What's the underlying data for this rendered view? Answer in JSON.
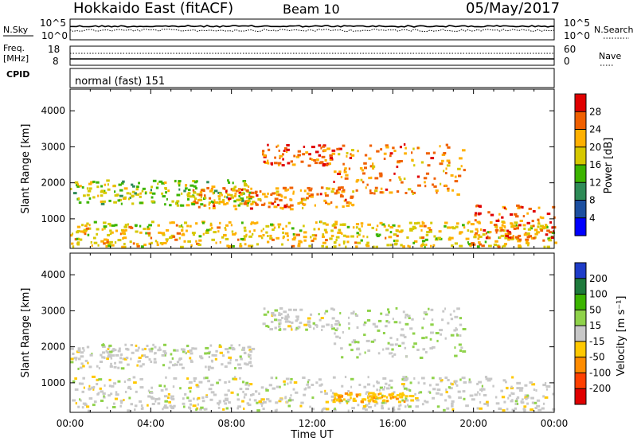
{
  "header": {
    "title": "Hokkaido East (fitACF)",
    "beam": "Beam 10",
    "date": "05/May/2017"
  },
  "panels": {
    "nsky": {
      "label": "N.Sky",
      "left_ticks": [
        "10^5",
        "10^0"
      ],
      "right_ticks": [
        "10^5",
        "10^0"
      ],
      "right_label": "N.Search"
    },
    "freq": {
      "label_top": "Freq.",
      "label_bottom": "[MHz]",
      "left_ticks": [
        "18",
        "8"
      ],
      "right_ticks": [
        "60",
        "0"
      ],
      "right_label": "Nave"
    },
    "cpid": {
      "label": "CPID",
      "text": "normal (fast) 151"
    }
  },
  "colorbars": {
    "power": {
      "label": "Power [dB]",
      "ticks": [
        "28",
        "24",
        "20",
        "16",
        "12",
        "8",
        "4"
      ],
      "colors": [
        "#e00000",
        "#f06000",
        "#ffb000",
        "#d6c800",
        "#3cb400",
        "#2e8b57",
        "#1c4fa0",
        "#0000ff"
      ]
    },
    "velocity": {
      "label": "Velocity [m s⁻¹]",
      "ticks": [
        "200",
        "100",
        "50",
        "15",
        "-15",
        "-50",
        "-100",
        "-200"
      ],
      "colors": [
        "#1e3cc8",
        "#1e7a3c",
        "#3cb400",
        "#8fd24a",
        "#c8c8c8",
        "#ffc800",
        "#ff8c00",
        "#ff4000",
        "#e00000"
      ]
    }
  },
  "chart_data": [
    {
      "type": "heatmap",
      "title": "Power",
      "ylabel": "Slant Range [km]",
      "xlabel": "Time UT",
      "xlim": [
        "00:00",
        "24:00"
      ],
      "ylim": [
        180,
        4600
      ],
      "xticks": [
        "00:00",
        "04:00",
        "08:00",
        "12:00",
        "16:00",
        "20:00",
        "00:00"
      ],
      "yticks": [
        "4000",
        "3000",
        "2000",
        "1000"
      ],
      "colorbar": "power",
      "features": [
        {
          "name": "near-range bands",
          "t": [
            0,
            24
          ],
          "range_km": [
            250,
            950
          ],
          "level_db": 20
        },
        {
          "name": "morning layer",
          "t": [
            0,
            9
          ],
          "range_km": [
            1400,
            2100
          ],
          "level_db": 16
        },
        {
          "name": "mid-day layer",
          "t": [
            6,
            14
          ],
          "range_km": [
            1300,
            1900
          ],
          "level_db": 24
        },
        {
          "name": "far echo",
          "t": [
            9.5,
            13
          ],
          "range_km": [
            2500,
            3100
          ],
          "level_db": 26
        },
        {
          "name": "afternoon arc",
          "t": [
            13,
            19.5
          ],
          "range_km": [
            1700,
            3100
          ],
          "level_db": 24
        },
        {
          "name": "late evening patch",
          "t": [
            20,
            24
          ],
          "range_km": [
            400,
            1400
          ],
          "level_db": 26
        }
      ]
    },
    {
      "type": "heatmap",
      "title": "Velocity",
      "ylabel": "Slant Range [km]",
      "xlabel": "Time UT",
      "xlim": [
        "00:00",
        "24:00"
      ],
      "ylim": [
        180,
        4600
      ],
      "xticks": [
        "00:00",
        "04:00",
        "08:00",
        "12:00",
        "16:00",
        "20:00",
        "00:00"
      ],
      "yticks": [
        "4000",
        "3000",
        "2000",
        "1000"
      ],
      "colorbar": "velocity",
      "features": [
        {
          "name": "ground scatter bands",
          "t": [
            0,
            24
          ],
          "range_km": [
            250,
            1200
          ],
          "velocity_ms": 0
        },
        {
          "name": "morning layer",
          "t": [
            0,
            9
          ],
          "range_km": [
            1400,
            2100
          ],
          "velocity_ms": 0
        },
        {
          "name": "far echo",
          "t": [
            9.5,
            13
          ],
          "range_km": [
            2500,
            3100
          ],
          "velocity_ms": 0
        },
        {
          "name": "afternoon arc",
          "t": [
            13,
            19.5
          ],
          "range_km": [
            1700,
            3100
          ],
          "velocity_ms": 10
        },
        {
          "name": "negative-velocity strip",
          "t": [
            13,
            17
          ],
          "range_km": [
            500,
            750
          ],
          "velocity_ms": -40
        }
      ]
    }
  ],
  "xaxis": {
    "label": "Time UT"
  }
}
